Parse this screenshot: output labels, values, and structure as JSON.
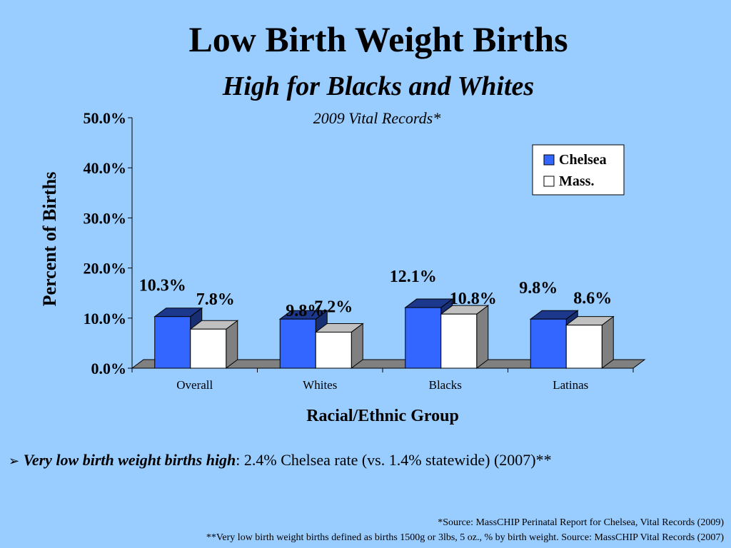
{
  "slide": {
    "title": "Low Birth Weight Births",
    "subtitle": "High for Blacks and Whites",
    "bullet": {
      "marker": "➢",
      "emphasis": "Very low birth weight births high",
      "rest": ":  2.4% Chelsea rate (vs. 1.4% statewide) (2007)**"
    },
    "footnotes": [
      "*Source:  MassCHIP Perinatal Report for Chelsea, Vital Records (2009)",
      "**Very low birth weight births defined as births 1500g or 3lbs, 5 oz., % by birth weight. Source:  MassCHIP Vital Records (2007)"
    ]
  },
  "chart_data": {
    "type": "bar",
    "title": "2009 Vital Records*",
    "xlabel": "Racial/Ethnic Group",
    "ylabel": "Percent of Births",
    "categories": [
      "Overall",
      "Whites",
      "Blacks",
      "Latinas"
    ],
    "series": [
      {
        "name": "Chelsea",
        "values": [
          10.3,
          9.8,
          12.1,
          9.8
        ],
        "labels": [
          "10.3%",
          "9.8%",
          "12.1%",
          "9.8%"
        ],
        "color": "#3366FF"
      },
      {
        "name": "Mass.",
        "values": [
          7.8,
          7.2,
          10.8,
          8.6
        ],
        "labels": [
          "7.8%",
          "7.2%",
          "10.8%",
          "8.6%"
        ],
        "color": "#FFFFFF"
      }
    ],
    "ylim": [
      0,
      50
    ],
    "yticks": [
      0,
      10,
      20,
      30,
      40,
      50
    ],
    "ytick_labels": [
      "0.0%",
      "10.0%",
      "20.0%",
      "30.0%",
      "40.0%",
      "50.0%"
    ],
    "legend_position": "top-right",
    "grid": false
  }
}
